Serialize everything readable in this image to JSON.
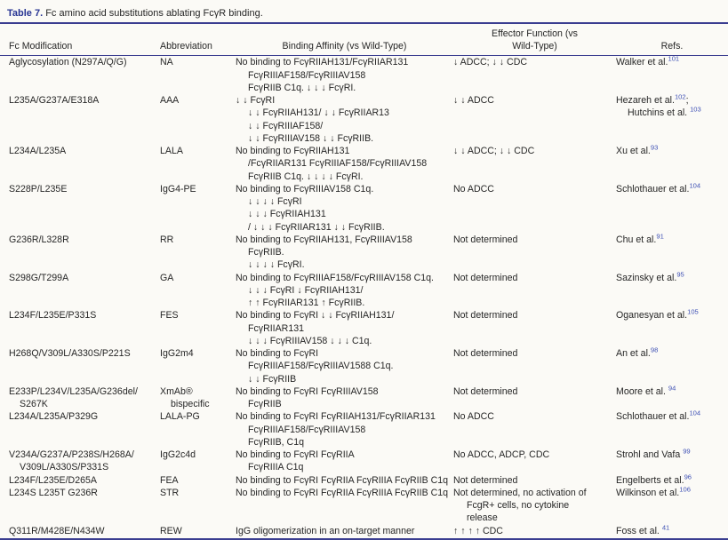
{
  "caption": {
    "label": "Table 7.",
    "text": " Fc amino acid substitutions ablating FcγR binding."
  },
  "header": {
    "fc_modification": "Fc Modification",
    "abbreviation": "Abbreviation",
    "binding_affinity": "Binding Affinity (vs Wild-Type)",
    "effector_line1": "Effector Function (vs",
    "effector_line2": "Wild-Type)",
    "refs": "Refs."
  },
  "colors": {
    "accent_navy": "#3a3d90",
    "caption_label": "#283593",
    "citation_blue": "#3f51b5",
    "body_text": "#262626",
    "background": "#fbfaf6"
  },
  "rows": [
    {
      "mod": [
        "Aglycosylation (N297A/Q/G)"
      ],
      "abbr": [
        "NA"
      ],
      "binding": [
        "No binding to FcγRIIAH131/FcγRIIAR131",
        "FcγRIIIAF158/FcγRIIIAV158",
        "FcγRIIB C1q. ↓ ↓ ↓ FcγRI."
      ],
      "effector": [
        "↓ ADCC; ↓ ↓ CDC"
      ],
      "refs": [
        {
          "pre": "Walker et al.",
          "sup": "101",
          "post": ""
        }
      ]
    },
    {
      "mod": [
        "L235A/G237A/E318A"
      ],
      "abbr": [
        "AAA"
      ],
      "binding": [
        "↓ ↓ FcγRI",
        "↓ ↓ FcγRIIAH131/ ↓ ↓ FcγRIIAR13",
        "↓ ↓ FcγRIIIAF158/",
        "↓ ↓ FcγRIIIAV158 ↓ ↓ FcγRIIB."
      ],
      "effector": [
        "↓ ↓ ADCC"
      ],
      "refs": [
        {
          "pre": "Hezareh et al.",
          "sup": "102",
          "post": ";"
        },
        {
          "pre": "Hutchins et al. ",
          "sup": "103",
          "post": ""
        }
      ]
    },
    {
      "mod": [
        "L234A/L235A"
      ],
      "abbr": [
        "LALA"
      ],
      "binding": [
        "No binding to FcγRIIAH131",
        "/FcγRIIAR131 FcγRIIIAF158/FcγRIIIAV158",
        "FcγRIIB C1q. ↓ ↓ ↓ ↓ FcγRI."
      ],
      "effector": [
        "↓ ↓ ADCC; ↓ ↓ CDC"
      ],
      "refs": [
        {
          "pre": "Xu et al.",
          "sup": "93",
          "post": ""
        }
      ]
    },
    {
      "mod": [
        "S228P/L235E"
      ],
      "abbr": [
        "IgG4-PE"
      ],
      "binding": [
        "No binding to FcγRIIIAV158 C1q.",
        "↓ ↓ ↓ ↓ FcγRI",
        "↓ ↓ ↓ FcγRIIAH131",
        "/ ↓ ↓ ↓ FcγRIIAR131 ↓ ↓ FcγRIIB."
      ],
      "effector": [
        "No ADCC"
      ],
      "refs": [
        {
          "pre": "Schlothauer et al.",
          "sup": "104",
          "post": ""
        }
      ]
    },
    {
      "mod": [
        "G236R/L328R"
      ],
      "abbr": [
        "RR"
      ],
      "binding": [
        "No binding to FcγRIIAH131, FcγRIIIAV158",
        "FcγRIIB.",
        "↓ ↓ ↓ ↓ FcγRI."
      ],
      "effector": [
        "Not determined"
      ],
      "refs": [
        {
          "pre": "Chu et al.",
          "sup": "91",
          "post": ""
        }
      ]
    },
    {
      "mod": [
        "S298G/T299A"
      ],
      "abbr": [
        "GA"
      ],
      "binding": [
        "No binding to FcγRIIIAF158/FcγRIIIAV158 C1q.",
        "↓ ↓ ↓ FcγRI ↓ FcγRIIAH131/",
        "↑ ↑ FcγRIIAR131 ↑ FcγRIIB."
      ],
      "effector": [
        "Not determined"
      ],
      "refs": [
        {
          "pre": "Sazinsky et al.",
          "sup": "95",
          "post": ""
        }
      ]
    },
    {
      "mod": [
        "L234F/L235E/P331S"
      ],
      "abbr": [
        "FES"
      ],
      "binding": [
        "No binding to FcγRI ↓ ↓ FcγRIIAH131/",
        "FcγRIIAR131",
        "↓ ↓ ↓ FcγRIIIAV158 ↓ ↓ ↓ C1q."
      ],
      "effector": [
        "Not determined"
      ],
      "refs": [
        {
          "pre": "Oganesyan et al.",
          "sup": "105",
          "post": ""
        }
      ]
    },
    {
      "mod": [
        "H268Q/V309L/A330S/P221S"
      ],
      "abbr": [
        "IgG2m4"
      ],
      "binding": [
        "No binding to FcγRI",
        "FcγRIIIAF158/FcγRIIIAV1588 C1q.",
        "↓ ↓ FcγRIIB"
      ],
      "effector": [
        "Not determined"
      ],
      "refs": [
        {
          "pre": "An et al.",
          "sup": "98",
          "post": ""
        }
      ]
    },
    {
      "mod": [
        "E233P/L234V/L235A/G236del/",
        "S267K"
      ],
      "abbr": [
        "XmAb®",
        "bispecific"
      ],
      "binding": [
        "No binding to FcγRI FcγRIIIAV158",
        "FcγRIIB"
      ],
      "effector": [
        "Not determined"
      ],
      "refs": [
        {
          "pre": "Moore et al. ",
          "sup": "94",
          "post": ""
        }
      ]
    },
    {
      "mod": [
        "L234A/L235A/P329G"
      ],
      "abbr": [
        "LALA-PG"
      ],
      "binding": [
        "No binding to FcγRI FcγRIIAH131/FcγRIIAR131",
        "FcγRIIIAF158/FcγRIIIAV158",
        "FcγRIIB, C1q"
      ],
      "effector": [
        "No ADCC"
      ],
      "refs": [
        {
          "pre": "Schlothauer et al.",
          "sup": "104",
          "post": ""
        }
      ]
    },
    {
      "mod": [
        "V234A/G237A/P238S/H268A/",
        "V309L/A330S/P331S"
      ],
      "abbr": [
        "IgG2c4d"
      ],
      "binding": [
        "No binding to FcγRI FcγRIIA",
        "FcγRIIIA C1q"
      ],
      "effector": [
        "No ADCC, ADCP, CDC"
      ],
      "refs": [
        {
          "pre": "Strohl and Vafa ",
          "sup": "99",
          "post": ""
        }
      ]
    },
    {
      "mod": [
        "L234F/L235E/D265A"
      ],
      "abbr": [
        "FEA"
      ],
      "binding": [
        "No binding to FcγRI FcγRIIA FcγRIIIA FcγRIIB C1q"
      ],
      "effector": [
        "Not determined"
      ],
      "refs": [
        {
          "pre": "Engelberts et al.",
          "sup": "96",
          "post": ""
        }
      ]
    },
    {
      "mod": [
        "L234S L235T G236R"
      ],
      "abbr": [
        "STR"
      ],
      "binding": [
        "No binding to FcγRI FcγRIIA FcγRIIIA FcγRIIB C1q"
      ],
      "effector": [
        "Not determined, no activation of",
        "FcgR+ cells, no cytokine",
        "release"
      ],
      "refs": [
        {
          "pre": "Wilkinson et al.",
          "sup": "106",
          "post": ""
        }
      ]
    },
    {
      "mod": [
        "Q311R/M428E/N434W"
      ],
      "abbr": [
        "REW"
      ],
      "binding": [
        "IgG oligomerization in an on-target manner"
      ],
      "effector": [
        "↑ ↑ ↑ ↑ CDC"
      ],
      "refs": [
        {
          "pre": "Foss et al. ",
          "sup": "41",
          "post": ""
        }
      ]
    }
  ]
}
